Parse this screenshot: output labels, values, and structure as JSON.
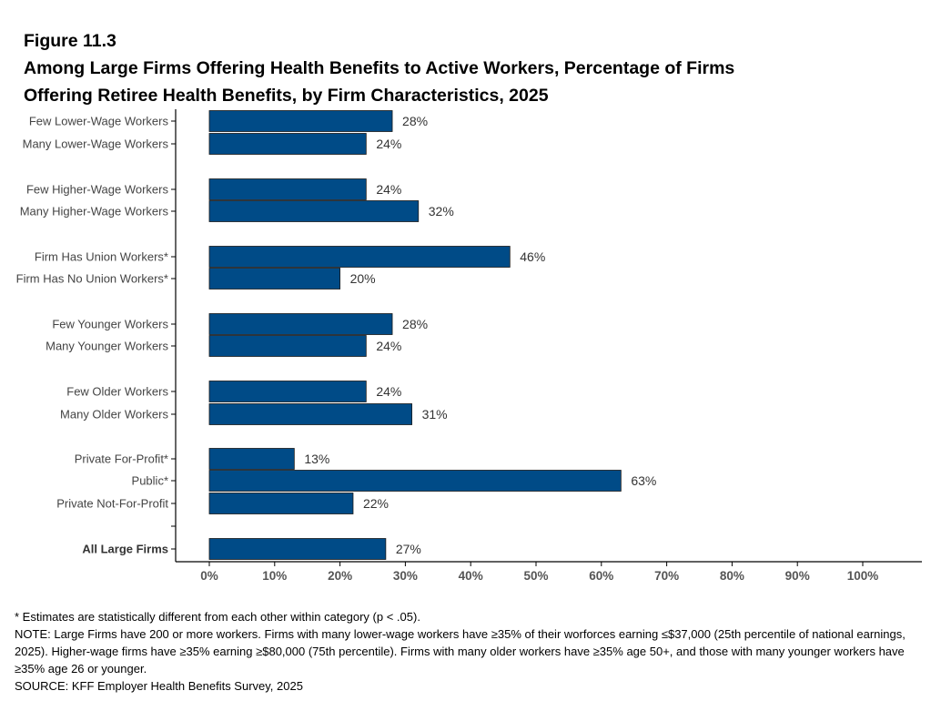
{
  "title": {
    "figure": "Figure 11.3",
    "line1": "Among Large Firms Offering Health Benefits to Active Workers, Percentage of Firms",
    "line2": "Offering Retiree Health Benefits, by Firm Characteristics, 2025"
  },
  "chart_data": {
    "type": "bar",
    "orientation": "horizontal",
    "title": "Among Large Firms Offering Health Benefits to Active Workers, Percentage of Firms Offering Retiree Health Benefits, by Firm Characteristics, 2025",
    "xlabel": "",
    "ylabel": "",
    "xlim": [
      0,
      100
    ],
    "xticks": [
      "0%",
      "10%",
      "20%",
      "30%",
      "40%",
      "50%",
      "60%",
      "70%",
      "80%",
      "90%",
      "100%"
    ],
    "bar_color": "#004b87",
    "grid": false,
    "legend": "none",
    "categories": [
      "Few Lower-Wage Workers",
      "Many Lower-Wage Workers",
      "Few Higher-Wage Workers",
      "Many Higher-Wage Workers",
      "Firm Has Union Workers*",
      "Firm Has No Union Workers*",
      "Few Younger Workers",
      "Many Younger Workers",
      "Few Older Workers",
      "Many Older Workers",
      "Private For-Profit*",
      "Public*",
      "Private Not-For-Profit",
      "All Large Firms"
    ],
    "values": [
      28,
      24,
      24,
      32,
      46,
      20,
      28,
      24,
      24,
      31,
      13,
      63,
      22,
      27
    ],
    "data_labels": [
      "28%",
      "24%",
      "24%",
      "32%",
      "46%",
      "20%",
      "28%",
      "24%",
      "24%",
      "31%",
      "13%",
      "63%",
      "22%",
      "27%"
    ],
    "bold_categories": [
      "All Large Firms"
    ]
  },
  "notes": {
    "significance": "* Estimates are statistically different from each other within category (p < .05).",
    "note": "NOTE: Large Firms have 200 or more workers. Firms with many lower-wage workers have ≥35% of their worforces earning ≤$37,000 (25th percentile of national earnings, 2025). Higher-wage firms have ≥35% earning ≥$80,000 (75th percentile). Firms with many older workers have ≥35% age 50+, and those with many younger workers have ≥35% age 26 or younger.",
    "source": "SOURCE: KFF Employer Health Benefits Survey, 2025"
  }
}
